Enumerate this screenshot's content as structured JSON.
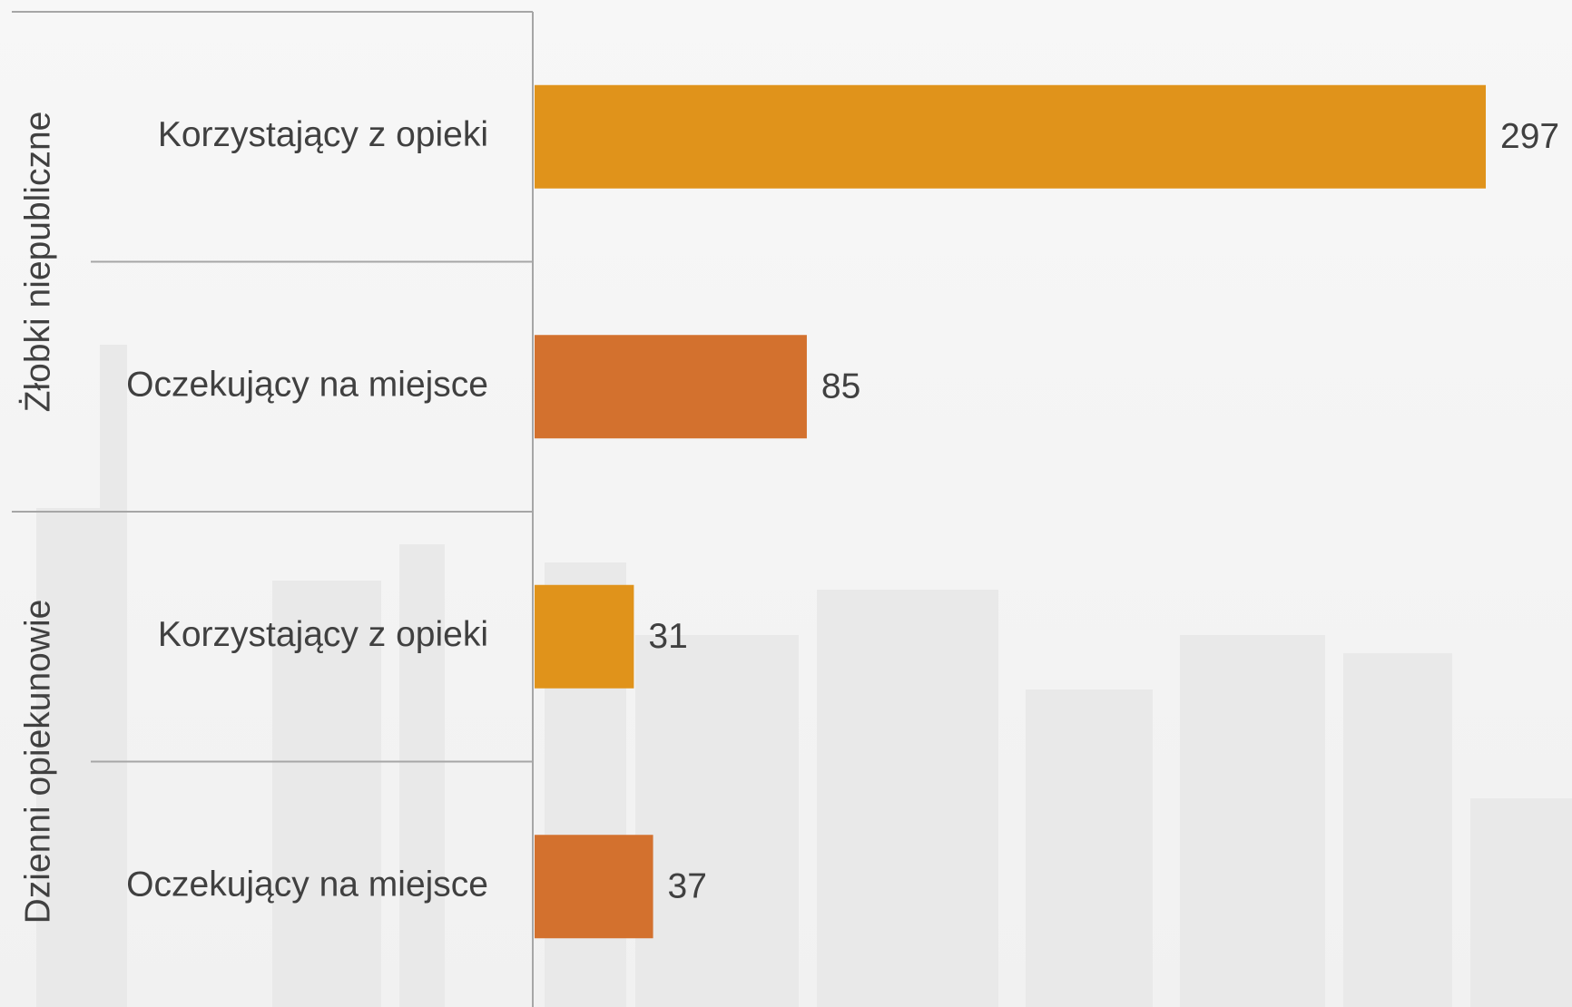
{
  "chart_data": {
    "type": "bar",
    "orientation": "horizontal",
    "groups": [
      {
        "name": "Żłobki niepubliczne",
        "categories": [
          "Korzystający z opieki",
          "Oczekujący na miejsce"
        ],
        "values": [
          297,
          85
        ],
        "colors": [
          "#e0931b",
          "#d3712e"
        ]
      },
      {
        "name": "Dzienni opiekunowie",
        "categories": [
          "Korzystający z opieki",
          "Oczekujący na miejsce"
        ],
        "values": [
          31,
          37
        ],
        "colors": [
          "#e0931b",
          "#d3712e"
        ]
      }
    ]
  }
}
